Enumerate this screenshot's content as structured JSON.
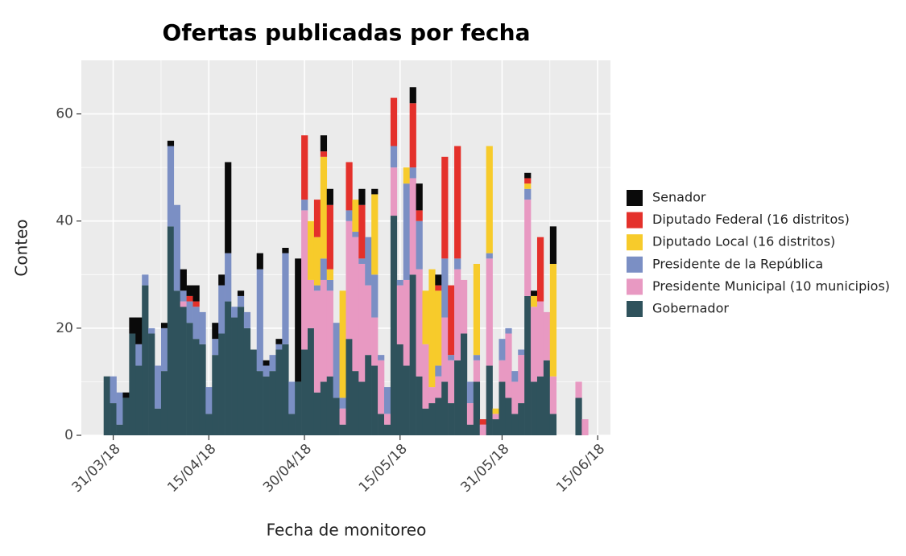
{
  "chart_data": {
    "type": "bar",
    "stacked": true,
    "title": "Ofertas publicadas por fecha",
    "x_label": "Fecha de monitoreo",
    "y_label": "Conteo",
    "x": [
      "2018-03-30",
      "2018-03-31",
      "2018-04-01",
      "2018-04-02",
      "2018-04-03",
      "2018-04-04",
      "2018-04-05",
      "2018-04-06",
      "2018-04-07",
      "2018-04-08",
      "2018-04-09",
      "2018-04-10",
      "2018-04-11",
      "2018-04-12",
      "2018-04-13",
      "2018-04-14",
      "2018-04-15",
      "2018-04-16",
      "2018-04-17",
      "2018-04-18",
      "2018-04-19",
      "2018-04-20",
      "2018-04-21",
      "2018-04-22",
      "2018-04-23",
      "2018-04-24",
      "2018-04-25",
      "2018-04-26",
      "2018-04-27",
      "2018-04-28",
      "2018-04-29",
      "2018-04-30",
      "2018-05-01",
      "2018-05-02",
      "2018-05-03",
      "2018-05-04",
      "2018-05-05",
      "2018-05-06",
      "2018-05-07",
      "2018-05-08",
      "2018-05-09",
      "2018-05-10",
      "2018-05-11",
      "2018-05-12",
      "2018-05-13",
      "2018-05-14",
      "2018-05-15",
      "2018-05-16",
      "2018-05-17",
      "2018-05-18",
      "2018-05-19",
      "2018-05-20",
      "2018-05-21",
      "2018-05-22",
      "2018-05-23",
      "2018-05-24",
      "2018-05-25",
      "2018-05-26",
      "2018-05-27",
      "2018-05-28",
      "2018-05-29",
      "2018-05-30",
      "2018-05-31",
      "2018-06-01",
      "2018-06-02",
      "2018-06-03",
      "2018-06-04",
      "2018-06-05",
      "2018-06-06",
      "2018-06-07",
      "2018-06-08",
      "2018-06-09",
      "2018-06-10",
      "2018-06-11",
      "2018-06-12",
      "2018-06-13"
    ],
    "series": [
      {
        "name": "Senador",
        "color": "#0a0a0a",
        "values": [
          0,
          0,
          0,
          1,
          3,
          5,
          0,
          0,
          0,
          1,
          1,
          0,
          4,
          2,
          3,
          0,
          0,
          3,
          2,
          17,
          0,
          1,
          0,
          0,
          3,
          1,
          0,
          1,
          1,
          0,
          23,
          0,
          0,
          0,
          3,
          3,
          0,
          0,
          0,
          0,
          3,
          0,
          1,
          0,
          0,
          0,
          0,
          0,
          3,
          5,
          0,
          0,
          2,
          0,
          0,
          0,
          0,
          0,
          0,
          0,
          0,
          0,
          0,
          0,
          0,
          0,
          1,
          1,
          0,
          0,
          7,
          0,
          0,
          0,
          0,
          0
        ]
      },
      {
        "name": "Diputado Federal (16 distritos)",
        "color": "#e4312b",
        "values": [
          0,
          0,
          0,
          0,
          0,
          0,
          0,
          0,
          0,
          0,
          0,
          0,
          0,
          1,
          1,
          0,
          0,
          0,
          0,
          0,
          0,
          0,
          0,
          0,
          0,
          0,
          0,
          0,
          0,
          0,
          0,
          12,
          0,
          7,
          1,
          12,
          0,
          0,
          9,
          0,
          10,
          0,
          0,
          0,
          0,
          9,
          0,
          0,
          12,
          2,
          0,
          0,
          1,
          19,
          13,
          21,
          0,
          0,
          0,
          1,
          0,
          0,
          0,
          0,
          0,
          0,
          1,
          0,
          12,
          0,
          0,
          0,
          0,
          0,
          0,
          0
        ]
      },
      {
        "name": "Diputado Local (16 distritos)",
        "color": "#f7cb2b",
        "values": [
          0,
          0,
          0,
          0,
          0,
          0,
          0,
          0,
          0,
          0,
          0,
          0,
          0,
          0,
          0,
          0,
          0,
          0,
          0,
          0,
          0,
          0,
          0,
          0,
          0,
          0,
          0,
          0,
          0,
          0,
          0,
          0,
          11,
          9,
          19,
          2,
          0,
          20,
          0,
          6,
          0,
          0,
          15,
          0,
          0,
          0,
          0,
          3,
          0,
          0,
          10,
          22,
          14,
          0,
          0,
          0,
          0,
          0,
          17,
          0,
          20,
          1,
          0,
          0,
          0,
          0,
          1,
          2,
          0,
          0,
          21,
          0,
          0,
          0,
          0,
          0
        ]
      },
      {
        "name": "Presidente de la República",
        "color": "#7b8fc4",
        "values": [
          0,
          5,
          6,
          0,
          0,
          4,
          2,
          1,
          8,
          8,
          15,
          16,
          2,
          4,
          6,
          6,
          5,
          3,
          9,
          9,
          2,
          2,
          3,
          0,
          19,
          2,
          3,
          1,
          17,
          6,
          0,
          2,
          0,
          1,
          4,
          2,
          14,
          2,
          2,
          1,
          1,
          9,
          8,
          1,
          5,
          4,
          1,
          18,
          2,
          9,
          0,
          0,
          2,
          11,
          1,
          2,
          0,
          4,
          1,
          0,
          1,
          0,
          4,
          1,
          2,
          1,
          2,
          0,
          0,
          0,
          0,
          0,
          0,
          0,
          0,
          0
        ]
      },
      {
        "name": "Presidente Municipal (10 municipios)",
        "color": "#e899c2",
        "values": [
          0,
          0,
          0,
          0,
          0,
          0,
          0,
          0,
          0,
          0,
          0,
          0,
          1,
          0,
          0,
          0,
          0,
          0,
          0,
          0,
          0,
          0,
          0,
          0,
          0,
          0,
          0,
          0,
          0,
          0,
          0,
          26,
          9,
          19,
          19,
          16,
          0,
          3,
          22,
          25,
          22,
          13,
          9,
          10,
          2,
          9,
          11,
          16,
          18,
          20,
          12,
          3,
          4,
          12,
          8,
          17,
          10,
          4,
          4,
          2,
          20,
          1,
          4,
          12,
          6,
          9,
          18,
          14,
          14,
          9,
          7,
          0,
          0,
          0,
          3,
          3
        ]
      },
      {
        "name": "Gobernador",
        "color": "#2f525c",
        "values": [
          11,
          6,
          2,
          7,
          19,
          13,
          28,
          19,
          5,
          12,
          39,
          27,
          24,
          21,
          18,
          17,
          4,
          15,
          19,
          25,
          22,
          24,
          20,
          16,
          12,
          11,
          12,
          16,
          17,
          4,
          10,
          16,
          20,
          8,
          10,
          11,
          7,
          2,
          18,
          12,
          10,
          15,
          13,
          4,
          2,
          41,
          17,
          13,
          30,
          11,
          5,
          6,
          7,
          10,
          6,
          14,
          19,
          2,
          10,
          0,
          13,
          3,
          10,
          7,
          4,
          6,
          26,
          10,
          11,
          14,
          4,
          0,
          0,
          0,
          7,
          0
        ]
      }
    ],
    "xlim": [
      "2018-03-26",
      "2018-06-17"
    ],
    "xticks": [
      {
        "value": "2018-03-31",
        "label": "31/03/18"
      },
      {
        "value": "2018-04-15",
        "label": "15/04/18"
      },
      {
        "value": "2018-04-30",
        "label": "30/04/18"
      },
      {
        "value": "2018-05-15",
        "label": "15/05/18"
      },
      {
        "value": "2018-05-31",
        "label": "31/05/18"
      },
      {
        "value": "2018-06-15",
        "label": "15/06/18"
      }
    ],
    "ylim": [
      0,
      70
    ],
    "yticks": [
      0,
      20,
      40,
      60
    ],
    "grid": true,
    "legend": "right"
  }
}
